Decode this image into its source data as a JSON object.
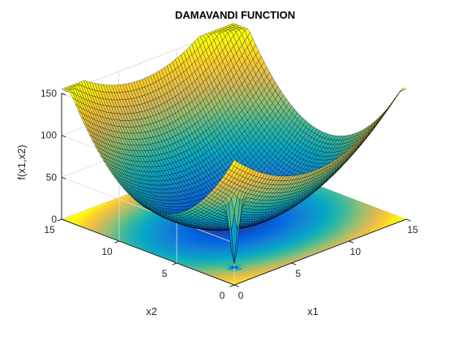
{
  "chart_data": {
    "type": "surface3d",
    "title": "DAMAVANDI FUNCTION",
    "xlabel": "x1",
    "ylabel": "x2",
    "zlabel": "f(x1,x2)",
    "xlim": [
      0,
      15
    ],
    "ylim": [
      0,
      15
    ],
    "zlim": [
      0,
      150
    ],
    "xticks": [
      "0",
      "5",
      "10",
      "15"
    ],
    "yticks": [
      "0",
      "5",
      "10",
      "15"
    ],
    "zticks": [
      "0",
      "50",
      "100",
      "150"
    ],
    "minimum": {
      "x1": 2,
      "x2": 2,
      "f": 0
    },
    "colormap": "parula",
    "contour_on_floor": true,
    "grid": true,
    "colors": {
      "parula": [
        "#352a87",
        "#0363e1",
        "#1485d4",
        "#06a7c6",
        "#38b99e",
        "#92bf73",
        "#d9ba56",
        "#fcce2e",
        "#f9fb0e"
      ]
    }
  }
}
